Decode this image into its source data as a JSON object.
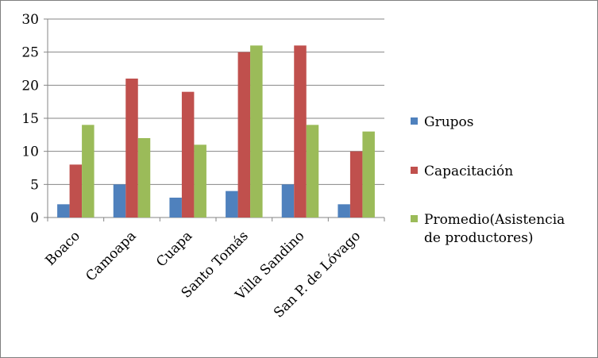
{
  "chart_data": {
    "type": "bar",
    "title": "",
    "xlabel": "",
    "ylabel": "",
    "ylim": [
      0,
      30
    ],
    "yticks": [
      0,
      5,
      10,
      15,
      20,
      25,
      30
    ],
    "grid": true,
    "legend_position": "right",
    "categories": [
      "Boaco",
      "Camoapa",
      "Cuapa",
      "Santo Tomás",
      "Villa Sandino",
      "San P. de Lóvago"
    ],
    "series": [
      {
        "name": "Grupos",
        "color": "#4f81bd",
        "values": [
          2,
          5,
          3,
          4,
          5,
          2
        ]
      },
      {
        "name": "Capacitación",
        "color": "#c0504d",
        "values": [
          8,
          21,
          19,
          25,
          26,
          10
        ]
      },
      {
        "name": "Promedio(Asistencia de productores)",
        "legend_lines": [
          "Promedio(Asistencia",
          "de productores)"
        ],
        "color": "#9bbb59",
        "values": [
          14,
          12,
          11,
          26,
          14,
          13
        ]
      }
    ]
  }
}
